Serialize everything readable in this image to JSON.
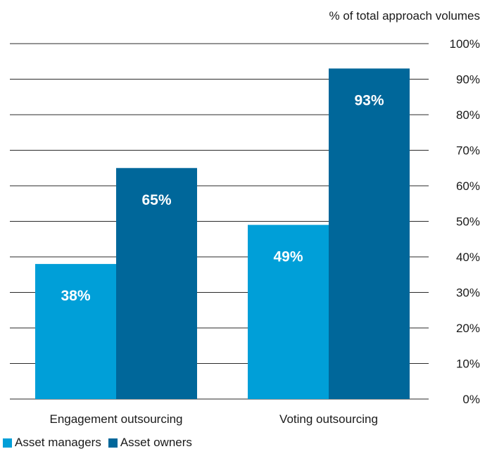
{
  "chart_data": {
    "type": "bar",
    "title": "",
    "xlabel": "",
    "ylabel": "% of total approach volumes",
    "ylim": [
      0,
      100
    ],
    "yticks": [
      "0%",
      "10%",
      "20%",
      "30%",
      "40%",
      "50%",
      "60%",
      "70%",
      "80%",
      "90%",
      "100%"
    ],
    "categories": [
      "Engagement outsourcing",
      "Voting outsourcing"
    ],
    "series": [
      {
        "name": "Asset managers",
        "values": [
          38,
          49
        ],
        "labels": [
          "38%",
          "49%"
        ],
        "color": "#009fd8"
      },
      {
        "name": "Asset owners",
        "values": [
          65,
          93
        ],
        "labels": [
          "65%",
          "93%"
        ],
        "color": "#00679a"
      }
    ],
    "grid": true,
    "legend": "bottom-left"
  }
}
